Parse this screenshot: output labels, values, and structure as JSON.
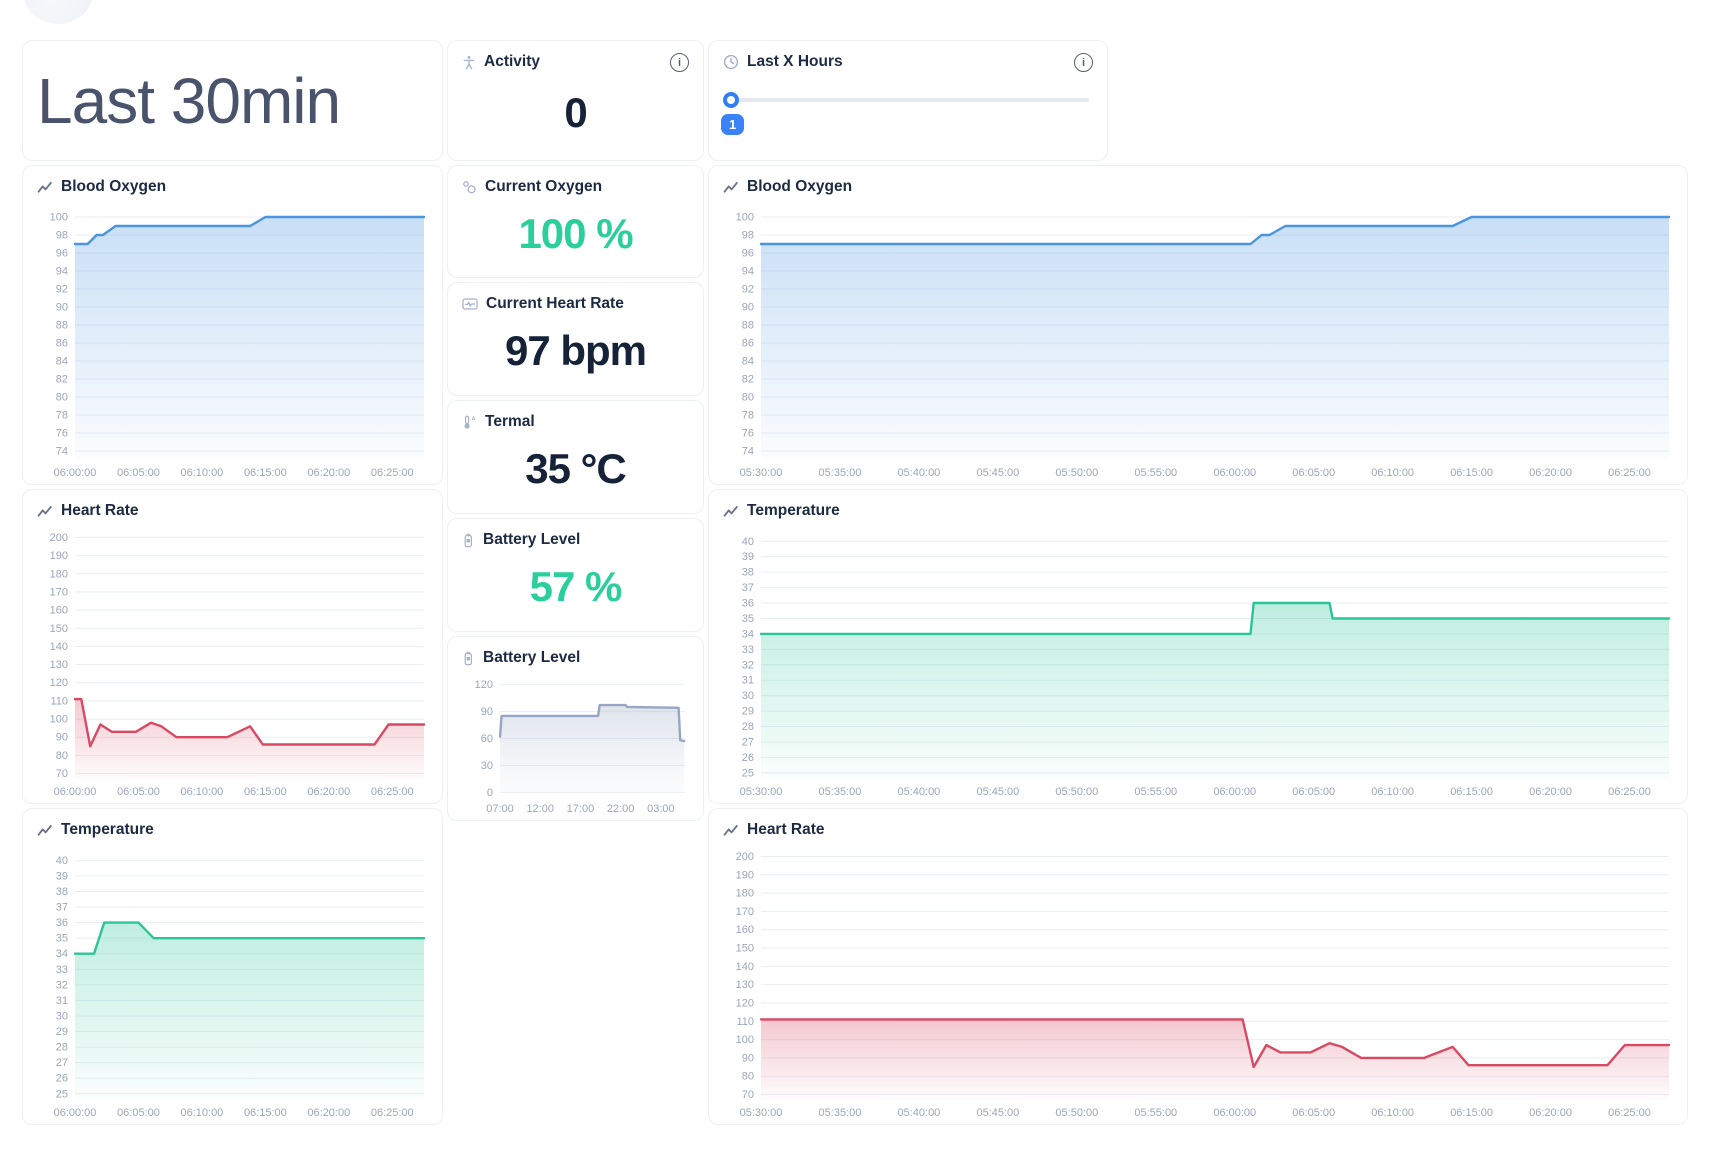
{
  "title_card": {
    "title": "Last 30min"
  },
  "activity_card": {
    "label": "Activity",
    "value": "0"
  },
  "slider_card": {
    "label": "Last X Hours",
    "value": "1"
  },
  "stats": {
    "current_oxygen": {
      "label": "Current Oxygen",
      "value": "100 %"
    },
    "current_heart_rate": {
      "label": "Current Heart Rate",
      "value": "97 bpm"
    },
    "termal": {
      "label": "Termal",
      "value": "35 °C"
    },
    "battery": {
      "label": "Battery Level",
      "value": "57 %"
    }
  },
  "colors": {
    "accent_green": "#2bcf9c",
    "navy": "#152238",
    "slider_blue": "#3b82f6",
    "blood_oxygen_line": "#4a94e0",
    "heart_rate_line": "#d84a63",
    "temperature_line": "#2cc596",
    "battery_line": "#97a6c2"
  },
  "chart_data": [
    {
      "id": "bo-left",
      "type": "area",
      "title": "Blood Oxygen",
      "color": "#4a94e0",
      "ymin": 73,
      "ymax": 101,
      "yticks": [
        100,
        98,
        96,
        94,
        92,
        90,
        88,
        86,
        84,
        82,
        80,
        78,
        76,
        74
      ],
      "xmax": 27.5,
      "xticks": [
        [
          0,
          "06:00:00"
        ],
        [
          5,
          "06:05:00"
        ],
        [
          10,
          "06:10:00"
        ],
        [
          15,
          "06:15:00"
        ],
        [
          20,
          "06:20:00"
        ],
        [
          25,
          "06:25:00"
        ]
      ],
      "points": [
        [
          0,
          97
        ],
        [
          1,
          97
        ],
        [
          1.7,
          98
        ],
        [
          2.2,
          98
        ],
        [
          3.2,
          99
        ],
        [
          13.8,
          99
        ],
        [
          15,
          100
        ],
        [
          27.5,
          100
        ]
      ]
    },
    {
      "id": "hr-left",
      "type": "area",
      "title": "Heart Rate",
      "color": "#d84a63",
      "ymin": 67,
      "ymax": 203,
      "yticks": [
        200,
        190,
        180,
        170,
        160,
        150,
        140,
        130,
        120,
        110,
        100,
        90,
        80,
        70
      ],
      "xmax": 27.5,
      "xticks": [
        [
          0,
          "06:00:00"
        ],
        [
          5,
          "06:05:00"
        ],
        [
          10,
          "06:10:00"
        ],
        [
          15,
          "06:15:00"
        ],
        [
          20,
          "06:20:00"
        ],
        [
          25,
          "06:25:00"
        ]
      ],
      "points": [
        [
          0,
          111
        ],
        [
          0.5,
          111
        ],
        [
          1.2,
          85
        ],
        [
          2,
          97
        ],
        [
          2.9,
          93
        ],
        [
          4.8,
          93
        ],
        [
          6,
          98
        ],
        [
          6.8,
          96
        ],
        [
          8,
          90
        ],
        [
          12,
          90
        ],
        [
          13.8,
          96
        ],
        [
          14.8,
          86
        ],
        [
          23.6,
          86
        ],
        [
          24.7,
          97
        ],
        [
          27.5,
          97
        ]
      ]
    },
    {
      "id": "temp-left",
      "type": "area",
      "title": "Temperature",
      "color": "#2cc596",
      "ymin": 24.6,
      "ymax": 40.6,
      "yticks": [
        40,
        39,
        38,
        37,
        36,
        35,
        34,
        33,
        32,
        31,
        30,
        29,
        28,
        27,
        26,
        25
      ],
      "xmax": 27.5,
      "xticks": [
        [
          0,
          "06:00:00"
        ],
        [
          5,
          "06:05:00"
        ],
        [
          10,
          "06:10:00"
        ],
        [
          15,
          "06:15:00"
        ],
        [
          20,
          "06:20:00"
        ],
        [
          25,
          "06:25:00"
        ]
      ],
      "points": [
        [
          0,
          34
        ],
        [
          1.5,
          34
        ],
        [
          2.3,
          36
        ],
        [
          5,
          36
        ],
        [
          6.2,
          35
        ],
        [
          27.5,
          35
        ]
      ]
    },
    {
      "id": "battery-chart",
      "type": "area",
      "title": "Battery Level",
      "color": "#97a6c2",
      "ymin": -4,
      "ymax": 126,
      "ybase": 0,
      "yticks": [
        120,
        90,
        60,
        30,
        0
      ],
      "xmax": 23,
      "xticks": [
        [
          0,
          "07:00"
        ],
        [
          5,
          "12:00"
        ],
        [
          10,
          "17:00"
        ],
        [
          15,
          "22:00"
        ],
        [
          20,
          "03:00"
        ]
      ],
      "points": [
        [
          0,
          62
        ],
        [
          0.2,
          85
        ],
        [
          12.2,
          85
        ],
        [
          12.4,
          97
        ],
        [
          15.6,
          97
        ],
        [
          15.8,
          95
        ],
        [
          22.2,
          94
        ],
        [
          22.4,
          58
        ],
        [
          22.9,
          57
        ]
      ]
    },
    {
      "id": "bo-right",
      "type": "area",
      "title": "Blood Oxygen",
      "color": "#4a94e0",
      "ymin": 73,
      "ymax": 101,
      "yticks": [
        100,
        98,
        96,
        94,
        92,
        90,
        88,
        86,
        84,
        82,
        80,
        78,
        76,
        74
      ],
      "xmax": 57.5,
      "xticks": [
        [
          0,
          "05:30:00"
        ],
        [
          5,
          "05:35:00"
        ],
        [
          10,
          "05:40:00"
        ],
        [
          15,
          "05:45:00"
        ],
        [
          20,
          "05:50:00"
        ],
        [
          25,
          "05:55:00"
        ],
        [
          30,
          "06:00:00"
        ],
        [
          35,
          "06:05:00"
        ],
        [
          40,
          "06:10:00"
        ],
        [
          45,
          "06:15:00"
        ],
        [
          50,
          "06:20:00"
        ],
        [
          55,
          "06:25:00"
        ]
      ],
      "points": [
        [
          0,
          97
        ],
        [
          31,
          97
        ],
        [
          31.7,
          98
        ],
        [
          32.2,
          98
        ],
        [
          33.2,
          99
        ],
        [
          43.8,
          99
        ],
        [
          45,
          100
        ],
        [
          57.5,
          100
        ]
      ]
    },
    {
      "id": "temp-right",
      "type": "area",
      "title": "Temperature",
      "color": "#2cc596",
      "ymin": 24.6,
      "ymax": 40.6,
      "yticks": [
        40,
        39,
        38,
        37,
        36,
        35,
        34,
        33,
        32,
        31,
        30,
        29,
        28,
        27,
        26,
        25
      ],
      "xmax": 57.5,
      "xticks": [
        [
          0,
          "05:30:00"
        ],
        [
          5,
          "05:35:00"
        ],
        [
          10,
          "05:40:00"
        ],
        [
          15,
          "05:45:00"
        ],
        [
          20,
          "05:50:00"
        ],
        [
          25,
          "05:55:00"
        ],
        [
          30,
          "06:00:00"
        ],
        [
          35,
          "06:05:00"
        ],
        [
          40,
          "06:10:00"
        ],
        [
          45,
          "06:15:00"
        ],
        [
          50,
          "06:20:00"
        ],
        [
          55,
          "06:25:00"
        ]
      ],
      "points": [
        [
          0,
          34
        ],
        [
          31,
          34
        ],
        [
          31.2,
          36
        ],
        [
          36,
          36
        ],
        [
          36.2,
          35
        ],
        [
          57.5,
          35
        ]
      ]
    },
    {
      "id": "hr-right",
      "type": "area",
      "title": "Heart Rate",
      "color": "#d84a63",
      "ymin": 67,
      "ymax": 203,
      "yticks": [
        200,
        190,
        180,
        170,
        160,
        150,
        140,
        130,
        120,
        110,
        100,
        90,
        80,
        70
      ],
      "xmax": 57.5,
      "xticks": [
        [
          0,
          "05:30:00"
        ],
        [
          5,
          "05:35:00"
        ],
        [
          10,
          "05:40:00"
        ],
        [
          15,
          "05:45:00"
        ],
        [
          20,
          "05:50:00"
        ],
        [
          25,
          "05:55:00"
        ],
        [
          30,
          "06:00:00"
        ],
        [
          35,
          "06:05:00"
        ],
        [
          40,
          "06:10:00"
        ],
        [
          45,
          "06:15:00"
        ],
        [
          50,
          "06:20:00"
        ],
        [
          55,
          "06:25:00"
        ]
      ],
      "points": [
        [
          0,
          111
        ],
        [
          30.5,
          111
        ],
        [
          31.2,
          85
        ],
        [
          32,
          97
        ],
        [
          32.9,
          93
        ],
        [
          34.8,
          93
        ],
        [
          36,
          98
        ],
        [
          36.8,
          96
        ],
        [
          38,
          90
        ],
        [
          42,
          90
        ],
        [
          43.8,
          96
        ],
        [
          44.8,
          86
        ],
        [
          53.6,
          86
        ],
        [
          54.7,
          97
        ],
        [
          57.5,
          97
        ]
      ]
    }
  ]
}
